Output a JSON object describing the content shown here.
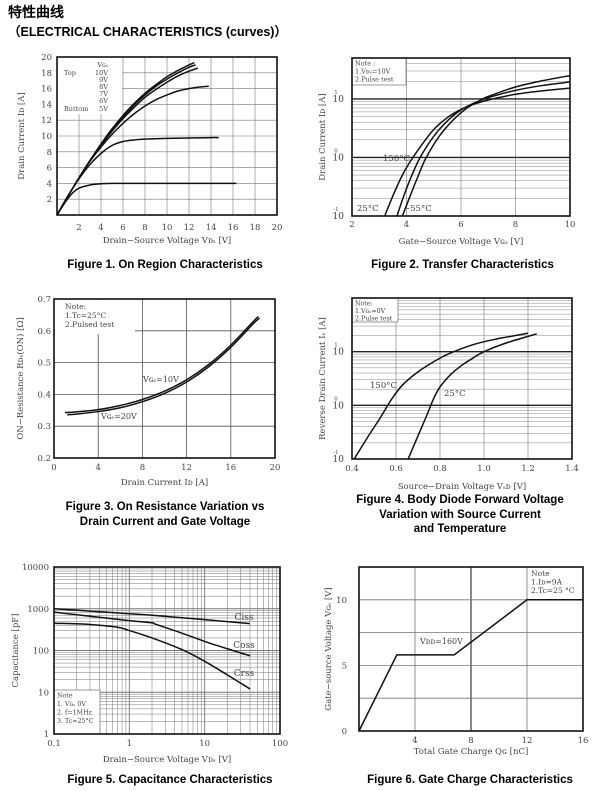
{
  "header": {
    "title_cn": "特性曲线",
    "title_en": "（ELECTRICAL CHARACTERISTICS (curves)）"
  },
  "chart_data": [
    {
      "id": "fig1",
      "type": "line",
      "title": "Figure 1. On Region Characteristics",
      "xlabel": "Drain−Source Voltage  Vᴅₛ [V]",
      "ylabel": "Drain Current  Iᴅ [A]",
      "xlim": [
        0,
        20
      ],
      "ylim": [
        0,
        20
      ],
      "xticks": [
        "2",
        "4",
        "6",
        "8",
        "10",
        "12",
        "14",
        "16",
        "18",
        "20"
      ],
      "yticks": [
        "2",
        "4",
        "6",
        "8",
        "10",
        "12",
        "14",
        "16",
        "18",
        "20"
      ],
      "grid": true,
      "legend": {
        "position": "top-left",
        "lines": [
          "Vɢₛ",
          "Top     10V",
          "9V",
          "8V",
          "7V",
          "6V",
          "Buttom  5V"
        ]
      },
      "series": [
        {
          "name": "10V",
          "x": [
            0,
            1,
            2,
            3,
            4,
            5,
            6,
            7,
            8,
            9,
            10,
            11,
            12,
            12.5
          ],
          "y": [
            0,
            2.4,
            4.7,
            6.9,
            9,
            10.9,
            12.6,
            14.1,
            15.4,
            16.5,
            17.5,
            18.3,
            19,
            19.3
          ]
        },
        {
          "name": "9V",
          "x": [
            0,
            1,
            2,
            3,
            4,
            5,
            6,
            7,
            8,
            9,
            10,
            11,
            12,
            12.6
          ],
          "y": [
            0,
            2.4,
            4.7,
            6.9,
            8.9,
            10.8,
            12.4,
            13.9,
            15.2,
            16.3,
            17.2,
            18,
            18.7,
            19
          ]
        },
        {
          "name": "8V",
          "x": [
            0,
            1,
            2,
            3,
            4,
            5,
            6,
            7,
            8,
            9,
            10,
            11,
            12,
            12.8
          ],
          "y": [
            0,
            2.4,
            4.7,
            6.9,
            8.8,
            10.6,
            12.2,
            13.6,
            14.9,
            15.9,
            16.8,
            17.6,
            18.2,
            18.6
          ]
        },
        {
          "name": "7V",
          "x": [
            0,
            1,
            2,
            3,
            4,
            5,
            6,
            7,
            8,
            9,
            10,
            11,
            12,
            13,
            13.8
          ],
          "y": [
            0,
            2.4,
            4.7,
            6.8,
            8.6,
            10.2,
            11.6,
            12.8,
            13.8,
            14.6,
            15.2,
            15.7,
            16,
            16.2,
            16.3
          ]
        },
        {
          "name": "6V",
          "x": [
            0,
            1,
            2,
            3,
            4,
            5,
            6,
            7,
            8,
            10,
            12,
            14,
            14.7
          ],
          "y": [
            0,
            2.4,
            4.6,
            6.4,
            7.8,
            8.8,
            9.3,
            9.5,
            9.6,
            9.7,
            9.75,
            9.8,
            9.8
          ]
        },
        {
          "name": "5V",
          "x": [
            0,
            0.5,
            1,
            1.5,
            2,
            3,
            4,
            5,
            6,
            8,
            10,
            12,
            14,
            16.3
          ],
          "y": [
            0,
            1.1,
            2.1,
            2.9,
            3.4,
            3.8,
            3.95,
            4,
            4,
            4,
            4,
            4,
            4,
            4
          ]
        }
      ]
    },
    {
      "id": "fig2",
      "type": "line",
      "title": "Figure 2. Transfer Characteristics",
      "xlabel": "Gate−Source Voltage  Vɢₛ [V]",
      "ylabel": "Drain Current  Iᴅ [A]",
      "xlim": [
        2,
        10
      ],
      "ylim": [
        0.1,
        50
      ],
      "yscale": "log",
      "xticks": [
        "2",
        "4",
        "6",
        "8",
        "10"
      ],
      "yticks": [
        {
          "base": "10",
          "exp": "-1"
        },
        {
          "base": "10",
          "exp": "0"
        },
        {
          "base": "10",
          "exp": "1"
        }
      ],
      "grid": true,
      "note": [
        "Note :",
        "1.Vᴅₛ=10V",
        "2.Pulse  test"
      ],
      "annotations": [
        "150°C",
        "25°C",
        "−55°C"
      ],
      "series": [
        {
          "name": "150°C",
          "x": [
            3.2,
            3.5,
            3.8,
            4.1,
            4.5,
            5,
            5.5,
            6,
            6.5,
            7,
            8,
            9,
            10
          ],
          "y": [
            0.1,
            0.22,
            0.45,
            0.8,
            1.5,
            3,
            4.8,
            6.6,
            8.2,
            9.6,
            12,
            13.8,
            15.3
          ]
        },
        {
          "name": "25°C",
          "x": [
            3.65,
            3.9,
            4.2,
            4.5,
            5,
            5.5,
            6,
            6.5,
            7,
            8,
            9,
            10
          ],
          "y": [
            0.1,
            0.22,
            0.5,
            1,
            2.3,
            4.2,
            6.5,
            8.6,
            10.5,
            14,
            17,
            19.5
          ]
        },
        {
          "name": "−55°C",
          "x": [
            3.85,
            4.1,
            4.4,
            4.7,
            5.2,
            5.7,
            6.2,
            6.7,
            7,
            8,
            9,
            10
          ],
          "y": [
            0.1,
            0.2,
            0.45,
            0.95,
            2.3,
            4.3,
            6.9,
            9.4,
            11,
            16,
            20.5,
            25
          ]
        }
      ]
    },
    {
      "id": "fig3",
      "type": "line",
      "title": "Figure 3. On Resistance Variation vs Drain Current and Gate Voltage",
      "title_lines": [
        "Figure 3. On Resistance Variation vs",
        "Drain Current and Gate Voltage"
      ],
      "xlabel": "Drain Current  Iᴅ [A]",
      "ylabel": "ON−Resistance  Rᴅₛ(ON) [Ω]",
      "xlim": [
        0,
        20
      ],
      "ylim": [
        0.2,
        0.7
      ],
      "xticks": [
        "0",
        "4",
        "8",
        "12",
        "16",
        "20"
      ],
      "yticks": [
        "0.2",
        "0.3",
        "0.4",
        "0.5",
        "0.6",
        "0.7"
      ],
      "grid": true,
      "note": [
        "Note:",
        "1.Tc=25°C",
        "2.Pulsed  test"
      ],
      "annotations": [
        "Vɢₛ=10V",
        "Vɢₛ=20V"
      ],
      "series": [
        {
          "name": "Vɢₛ=10V",
          "x": [
            1,
            2,
            4,
            6,
            8,
            10,
            12,
            14,
            16,
            18,
            18.5
          ],
          "y": [
            0.343,
            0.345,
            0.352,
            0.365,
            0.384,
            0.41,
            0.446,
            0.494,
            0.555,
            0.628,
            0.645
          ]
        },
        {
          "name": "Vɢₛ=20V",
          "x": [
            1.2,
            2,
            4,
            6,
            8,
            10,
            12,
            14,
            16,
            18,
            18.6
          ],
          "y": [
            0.336,
            0.338,
            0.346,
            0.358,
            0.377,
            0.403,
            0.439,
            0.487,
            0.548,
            0.621,
            0.64
          ]
        }
      ]
    },
    {
      "id": "fig4",
      "type": "line",
      "title": "Figure 4. Body Diode Forward Voltage Variation with Source Current and Temperature",
      "title_lines": [
        "Figure 4. Body Diode Forward Voltage",
        "Variation with Source Current",
        "and Temperature"
      ],
      "xlabel": "Source−Drain Voltage  Vₛᴅ [V]",
      "ylabel": "Reverse Drain Current  Iₛ [A]",
      "xlim": [
        0.4,
        1.4
      ],
      "ylim": [
        0.1,
        100
      ],
      "yscale": "log",
      "xticks": [
        "0.4",
        "0.6",
        "0.8",
        "1.0",
        "1.2",
        "1.4"
      ],
      "yticks": [
        {
          "base": "10",
          "exp": "-1"
        },
        {
          "base": "10",
          "exp": "0"
        },
        {
          "base": "10",
          "exp": "1"
        }
      ],
      "grid": true,
      "note": [
        "Note:",
        "1.Vɢₛ=0V",
        "2.Pulse  test"
      ],
      "annotations": [
        "150°C",
        "25°C"
      ],
      "series": [
        {
          "name": "150°C",
          "x": [
            0.41,
            0.47,
            0.53,
            0.58,
            0.63,
            0.7,
            0.78,
            0.85,
            0.95,
            1.05,
            1.2
          ],
          "y": [
            0.1,
            0.25,
            0.6,
            1.3,
            2.4,
            4.2,
            6.8,
            9.5,
            13.5,
            17,
            22
          ]
        },
        {
          "name": "25°C",
          "x": [
            0.655,
            0.7,
            0.74,
            0.77,
            0.8,
            0.85,
            0.9,
            0.95,
            1.0,
            1.1,
            1.24
          ],
          "y": [
            0.1,
            0.27,
            0.65,
            1.3,
            2.2,
            3.8,
            5.6,
            7.6,
            10,
            14.5,
            21.5
          ]
        }
      ]
    },
    {
      "id": "fig5",
      "type": "line",
      "title": "Figure 5. Capacitance Characteristics",
      "xlabel": "Drain−Source Voltage  Vᴅₛ [V]",
      "ylabel": "Capacitance [pF]",
      "xlim": [
        0.1,
        100
      ],
      "ylim": [
        1,
        10000
      ],
      "xscale": "log",
      "yscale": "log",
      "xticks": [
        "0.1",
        "1",
        "10",
        "100"
      ],
      "yticks": [
        "1",
        "10",
        "100",
        "1000",
        "10000"
      ],
      "grid": true,
      "note": [
        "Note",
        "1. Vɢₛ 0V",
        "2. f=1MHz",
        "3. Tc=25°C"
      ],
      "series": [
        {
          "name": "Ciss",
          "x": [
            0.1,
            0.3,
            1,
            2,
            5,
            10,
            20,
            40
          ],
          "y": [
            1000,
            880,
            760,
            700,
            610,
            550,
            490,
            440
          ]
        },
        {
          "name": "Coss",
          "x": [
            0.1,
            0.3,
            1,
            2,
            2.2,
            5,
            10,
            20,
            40
          ],
          "y": [
            830,
            660,
            520,
            460,
            430,
            260,
            165,
            110,
            75
          ]
        },
        {
          "name": "Crss",
          "x": [
            0.1,
            0.3,
            0.7,
            1,
            2,
            5,
            10,
            20,
            40
          ],
          "y": [
            450,
            420,
            360,
            300,
            200,
            105,
            55,
            26,
            12
          ]
        }
      ]
    },
    {
      "id": "fig6",
      "type": "line",
      "title": "Figure 6. Gate Charge Characteristics",
      "xlabel": "Total Gate Charge  Qɢ [nC]",
      "ylabel": "Gate−source Voltage  Vɢₛ [V]",
      "xlim": [
        0,
        16
      ],
      "ylim": [
        0,
        12.5
      ],
      "xticks": [
        "4",
        "8",
        "12",
        "16"
      ],
      "yticks": [
        "0",
        "5",
        "10"
      ],
      "grid": true,
      "note": [
        "Note",
        "1.Iᴅ=9A",
        "2.Tc=25 °C"
      ],
      "annotations": [
        "Vᴅᴅ=160V"
      ],
      "series": [
        {
          "name": "Vᴅᴅ=160V",
          "x": [
            0,
            2.7,
            6.8,
            12,
            16
          ],
          "y": [
            0,
            5.8,
            5.8,
            10,
            10
          ]
        }
      ]
    }
  ]
}
